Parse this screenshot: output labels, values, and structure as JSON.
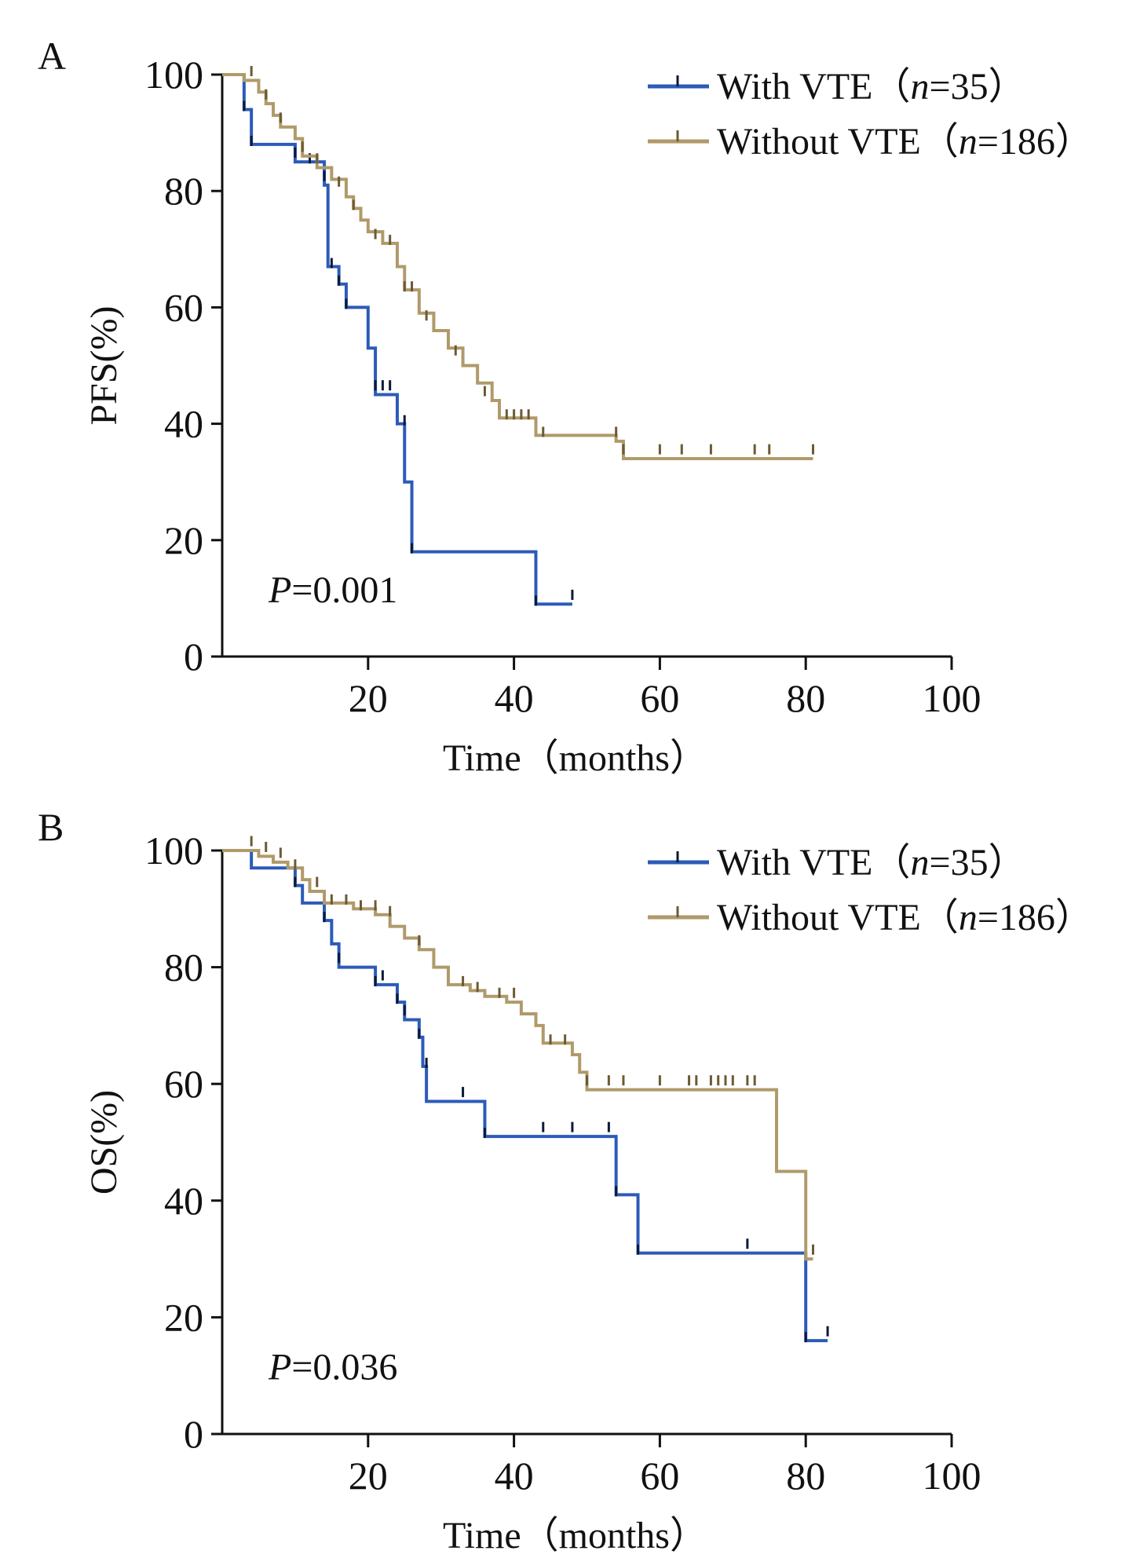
{
  "chart_data": [
    {
      "type": "line",
      "subtype": "kaplan-meier",
      "panel": "A",
      "title": "",
      "xlabel": "Time（months）",
      "ylabel": "PFS(%)",
      "xlim": [
        0,
        100
      ],
      "ylim": [
        0,
        100
      ],
      "xticks": [
        20,
        40,
        60,
        80,
        100
      ],
      "yticks": [
        0,
        20,
        40,
        60,
        80,
        100
      ],
      "grid": false,
      "legend_position": "top-right",
      "annotation": {
        "italic": "P",
        "text": "=0.001"
      },
      "series": [
        {
          "name": "With VTE（n=35）",
          "label_prefix": "With VTE（",
          "label_n": "n",
          "label_suffix": "=35）",
          "color": "#2c5bb8",
          "steps": [
            [
              0,
              100
            ],
            [
              3,
              94
            ],
            [
              4,
              88
            ],
            [
              10,
              85
            ],
            [
              14,
              81
            ],
            [
              14.5,
              67
            ],
            [
              16,
              64
            ],
            [
              17,
              60
            ],
            [
              20,
              53
            ],
            [
              21,
              45
            ],
            [
              24,
              40
            ],
            [
              25,
              30
            ],
            [
              26,
              18
            ],
            [
              43,
              9
            ],
            [
              48,
              9
            ]
          ],
          "censored": [
            [
              3,
              94
            ],
            [
              4,
              88
            ],
            [
              10,
              86
            ],
            [
              12,
              85
            ],
            [
              14,
              82
            ],
            [
              15,
              67
            ],
            [
              16,
              64
            ],
            [
              17,
              60
            ],
            [
              21,
              46
            ],
            [
              22,
              46
            ],
            [
              23,
              46
            ],
            [
              25,
              40
            ],
            [
              26,
              18
            ],
            [
              43,
              9
            ],
            [
              48,
              10
            ]
          ]
        },
        {
          "name": "Without VTE（n=186）",
          "label_prefix": "Without VTE（",
          "label_n": "n",
          "label_suffix": "=186）",
          "color": "#b09a6a",
          "steps": [
            [
              0,
              100
            ],
            [
              3,
              99
            ],
            [
              5,
              97
            ],
            [
              6,
              95
            ],
            [
              7,
              93
            ],
            [
              8,
              91
            ],
            [
              10,
              89
            ],
            [
              11,
              86
            ],
            [
              13,
              84
            ],
            [
              15,
              82
            ],
            [
              17,
              79
            ],
            [
              18,
              77
            ],
            [
              19,
              75
            ],
            [
              20,
              73
            ],
            [
              22,
              71
            ],
            [
              24,
              67
            ],
            [
              25,
              63
            ],
            [
              27,
              59
            ],
            [
              29,
              56
            ],
            [
              31,
              53
            ],
            [
              33,
              50
            ],
            [
              35,
              47
            ],
            [
              37,
              44
            ],
            [
              38,
              41
            ],
            [
              43,
              38
            ],
            [
              54,
              37
            ],
            [
              55,
              34
            ],
            [
              81,
              34
            ]
          ],
          "censored": [
            [
              4,
              100
            ],
            [
              6,
              96
            ],
            [
              8,
              92
            ],
            [
              11,
              87
            ],
            [
              13,
              85
            ],
            [
              16,
              81
            ],
            [
              18,
              77
            ],
            [
              21,
              72
            ],
            [
              23,
              71
            ],
            [
              25,
              63
            ],
            [
              26,
              63
            ],
            [
              28,
              58
            ],
            [
              32,
              52
            ],
            [
              36,
              45
            ],
            [
              39,
              41
            ],
            [
              40,
              41
            ],
            [
              41,
              41
            ],
            [
              42,
              41
            ],
            [
              44,
              38
            ],
            [
              54,
              38
            ],
            [
              55,
              35
            ],
            [
              60,
              35
            ],
            [
              63,
              35
            ],
            [
              67,
              35
            ],
            [
              73,
              35
            ],
            [
              75,
              35
            ],
            [
              81,
              35
            ]
          ]
        }
      ]
    },
    {
      "type": "line",
      "subtype": "kaplan-meier",
      "panel": "B",
      "title": "",
      "xlabel": "Time（months）",
      "ylabel": "OS(%)",
      "xlim": [
        0,
        100
      ],
      "ylim": [
        0,
        100
      ],
      "xticks": [
        20,
        40,
        60,
        80,
        100
      ],
      "yticks": [
        0,
        20,
        40,
        60,
        80,
        100
      ],
      "grid": false,
      "legend_position": "top-right",
      "annotation": {
        "italic": "P",
        "text": "=0.036"
      },
      "series": [
        {
          "name": "With VTE（n=35）",
          "label_prefix": "With VTE（",
          "label_n": "n",
          "label_suffix": "=35）",
          "color": "#2c5bb8",
          "steps": [
            [
              0,
              100
            ],
            [
              4,
              97
            ],
            [
              10,
              94
            ],
            [
              11,
              91
            ],
            [
              14,
              88
            ],
            [
              15,
              84
            ],
            [
              16,
              80
            ],
            [
              21,
              77
            ],
            [
              24,
              74
            ],
            [
              25,
              71
            ],
            [
              27,
              68
            ],
            [
              27.5,
              63
            ],
            [
              28,
              57
            ],
            [
              36,
              51
            ],
            [
              54,
              41
            ],
            [
              57,
              31
            ],
            [
              80,
              16
            ],
            [
              83,
              16
            ]
          ],
          "censored": [
            [
              10,
              94
            ],
            [
              14,
              88
            ],
            [
              16,
              81
            ],
            [
              21,
              77
            ],
            [
              22,
              78
            ],
            [
              24,
              74
            ],
            [
              25,
              72
            ],
            [
              27,
              68
            ],
            [
              28,
              63
            ],
            [
              33,
              58
            ],
            [
              36,
              51
            ],
            [
              44,
              52
            ],
            [
              48,
              52
            ],
            [
              53,
              52
            ],
            [
              54,
              41
            ],
            [
              57,
              31
            ],
            [
              72,
              32
            ],
            [
              80,
              16
            ],
            [
              83,
              17
            ]
          ]
        },
        {
          "name": "Without VTE（n=186）",
          "label_prefix": "Without VTE（",
          "label_n": "n",
          "label_suffix": "=186）",
          "color": "#b09a6a",
          "steps": [
            [
              0,
              100
            ],
            [
              5,
              99
            ],
            [
              7,
              98
            ],
            [
              9,
              97
            ],
            [
              11,
              95
            ],
            [
              12,
              93
            ],
            [
              14,
              91
            ],
            [
              18,
              90
            ],
            [
              21,
              89
            ],
            [
              23,
              87
            ],
            [
              25,
              85
            ],
            [
              27,
              83
            ],
            [
              29,
              80
            ],
            [
              31,
              77
            ],
            [
              34,
              76
            ],
            [
              36,
              75
            ],
            [
              39,
              74
            ],
            [
              41,
              72
            ],
            [
              43,
              70
            ],
            [
              44,
              67
            ],
            [
              48,
              65
            ],
            [
              49,
              62
            ],
            [
              50,
              59
            ],
            [
              76,
              45
            ],
            [
              80,
              30
            ],
            [
              81,
              30
            ]
          ],
          "censored": [
            [
              4,
              101
            ],
            [
              6,
              100
            ],
            [
              8,
              99
            ],
            [
              10,
              97
            ],
            [
              13,
              94
            ],
            [
              15,
              91
            ],
            [
              17,
              91
            ],
            [
              19,
              90
            ],
            [
              21,
              90
            ],
            [
              23,
              89
            ],
            [
              27,
              84
            ],
            [
              33,
              77
            ],
            [
              35,
              76
            ],
            [
              38,
              75
            ],
            [
              40,
              75
            ],
            [
              45,
              67
            ],
            [
              47,
              67
            ],
            [
              50,
              60
            ],
            [
              53,
              60
            ],
            [
              55,
              60
            ],
            [
              60,
              60
            ],
            [
              64,
              60
            ],
            [
              65,
              60
            ],
            [
              67,
              60
            ],
            [
              68,
              60
            ],
            [
              69,
              60
            ],
            [
              70,
              60
            ],
            [
              72,
              60
            ],
            [
              73,
              60
            ],
            [
              81,
              31
            ]
          ]
        }
      ]
    }
  ]
}
